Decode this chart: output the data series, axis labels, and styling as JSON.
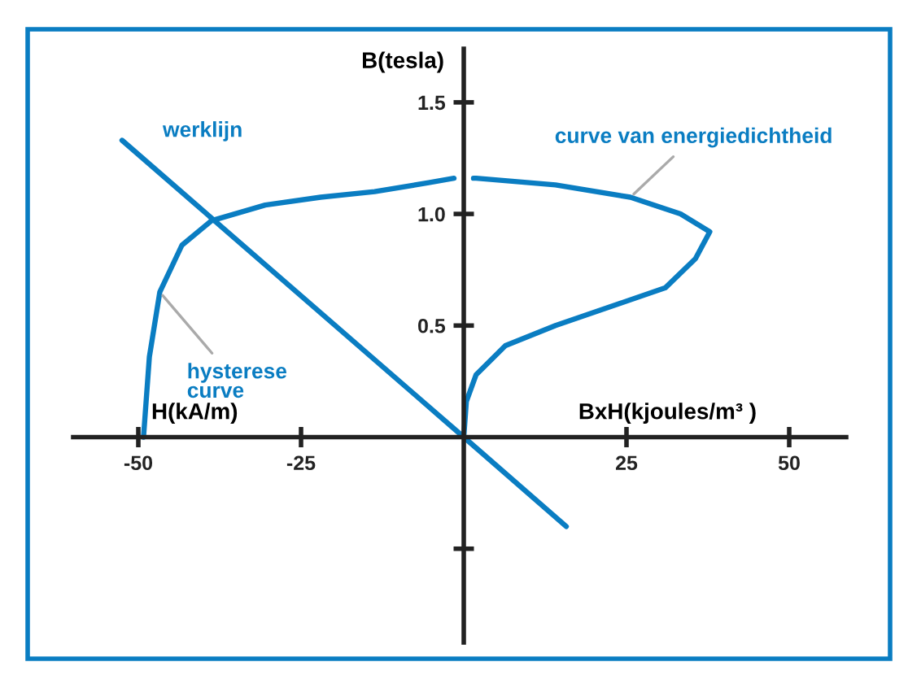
{
  "chart_data": {
    "type": "line",
    "xlabel": "H(kA/m)",
    "ylabel": "B(tesla)",
    "x2label": "BxH(kjoules/m³ )",
    "xlim": [
      -60,
      58.75
    ],
    "ylim": [
      -0.92,
      1.74
    ],
    "xticks": [
      -50,
      -25,
      25,
      50
    ],
    "yticks": [
      {
        "value": -0.5,
        "label": null
      },
      0.5,
      {
        "value": 1.0,
        "label": "1.0"
      },
      1.5
    ],
    "grid": false,
    "legend": false,
    "marker": "none",
    "line_style": "solid",
    "series": [
      {
        "name": "werklijn",
        "color": "#0a7dc2",
        "x": [
          -52.5,
          0,
          15.75
        ],
        "values": [
          1.33,
          0,
          -0.4
        ]
      },
      {
        "name": "hysterese\ncurve",
        "color": "#0a7dc2",
        "x": [
          -49.2,
          -48.3,
          -46.7,
          -43.3,
          -38.75,
          -30.5,
          -22,
          -13.7,
          -5.4,
          -1.5
        ],
        "values": [
          0,
          0.36,
          0.65,
          0.86,
          0.97,
          1.04,
          1.075,
          1.1,
          1.14,
          1.16
        ]
      },
      {
        "name": "curve van energiedichtheid",
        "color": "#0a7dc2",
        "x": [
          1.5,
          1.9,
          14.1,
          25.6,
          33.3,
          37.8,
          35.6,
          31,
          24.1,
          14.1,
          6.4,
          1.9,
          0.4,
          0
        ],
        "values": [
          1.16,
          1.16,
          1.13,
          1.075,
          1.0,
          0.92,
          0.8,
          0.67,
          0.6,
          0.5,
          0.41,
          0.28,
          0.16,
          0
        ]
      }
    ]
  }
}
